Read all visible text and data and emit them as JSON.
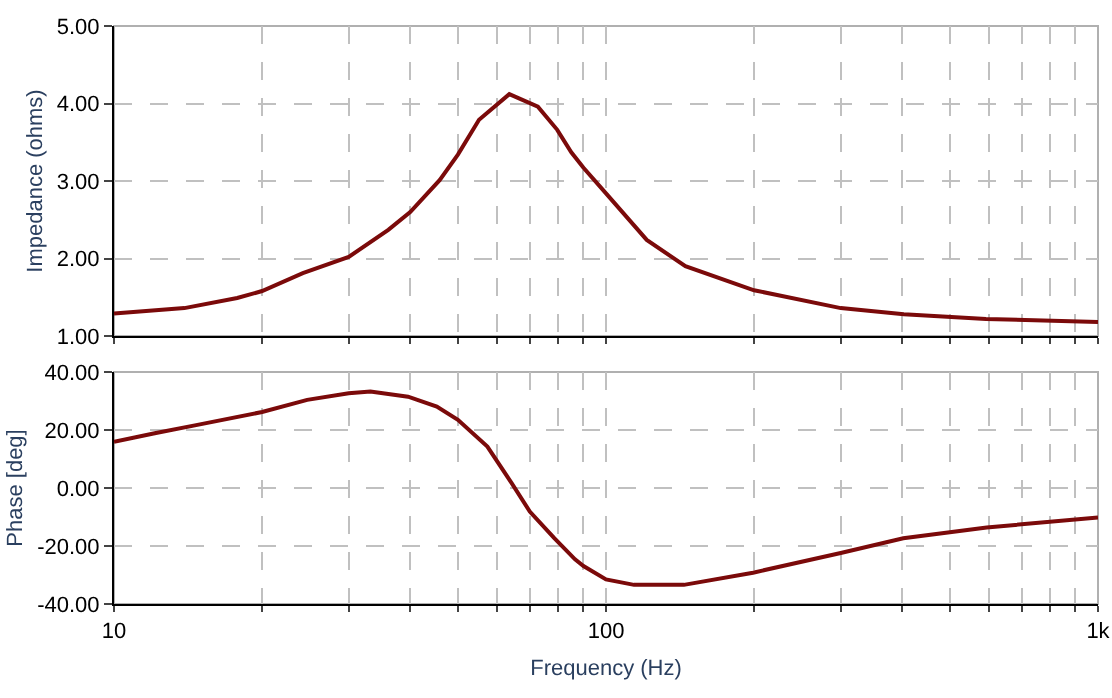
{
  "chart_data": [
    {
      "type": "line",
      "ylabel": "Impedance (ohms)",
      "log": "x",
      "grid": true,
      "tick_labels": "y",
      "x": [
        10,
        13.9,
        17.8,
        20,
        24.2,
        30,
        36.1,
        40,
        45.9,
        50,
        55.2,
        63.6,
        72.7,
        79.6,
        85,
        90,
        100,
        121,
        145,
        200,
        300,
        403,
        592,
        1000
      ],
      "series": [
        {
          "color": "#7b0a0a",
          "values": [
            1.29,
            1.36,
            1.49,
            1.58,
            1.81,
            2.02,
            2.37,
            2.6,
            3.01,
            3.34,
            3.79,
            4.12,
            3.96,
            3.66,
            3.37,
            3.17,
            2.84,
            2.24,
            1.9,
            1.59,
            1.36,
            1.28,
            1.22,
            1.18
          ]
        }
      ],
      "xlim": [
        10,
        1000
      ],
      "xticks": [
        {
          "value": 10,
          "label": null
        },
        {
          "value": 20,
          "label": null
        },
        {
          "value": 30,
          "label": null
        },
        {
          "value": 40,
          "label": null
        },
        {
          "value": 50,
          "label": null
        },
        {
          "value": 60,
          "label": null
        },
        {
          "value": 70,
          "label": null
        },
        {
          "value": 80,
          "label": null
        },
        {
          "value": 90,
          "label": null
        },
        {
          "value": 100,
          "label": null
        },
        {
          "value": 200,
          "label": null
        },
        {
          "value": 300,
          "label": null
        },
        {
          "value": 400,
          "label": null
        },
        {
          "value": 500,
          "label": null
        },
        {
          "value": 600,
          "label": null
        },
        {
          "value": 700,
          "label": null
        },
        {
          "value": 800,
          "label": null
        },
        {
          "value": 900,
          "label": null
        },
        {
          "value": 1000,
          "label": null
        }
      ],
      "ylim": [
        1,
        5
      ],
      "yticks": [
        {
          "value": 1,
          "label": "1.00"
        },
        {
          "value": 2,
          "label": "2.00"
        },
        {
          "value": 3,
          "label": "3.00"
        },
        {
          "value": 4,
          "label": "4.00"
        },
        {
          "value": 5,
          "label": "5.00"
        }
      ]
    },
    {
      "type": "line",
      "ylabel": "Phase [deg]",
      "xlabel": "Frequency (Hz)",
      "log": "x",
      "grid": true,
      "x": [
        10,
        12.1,
        14.6,
        20,
        24.7,
        30,
        33.2,
        39.6,
        45.3,
        50,
        57.4,
        64.3,
        70,
        78.5,
        86.5,
        90,
        100,
        114,
        144,
        199,
        300,
        402,
        594,
        1000
      ],
      "series": [
        {
          "color": "#7b0a0a",
          "values": [
            15.9,
            18.9,
            21.6,
            26.2,
            30.4,
            32.7,
            33.3,
            31.5,
            28.1,
            23.5,
            14.3,
            1.7,
            -8.1,
            -17.3,
            -24.6,
            -26.9,
            -31.5,
            -33.4,
            -33.4,
            -29.2,
            -22.4,
            -17.3,
            -13.6,
            -10.2
          ]
        }
      ],
      "xlim": [
        10,
        1000
      ],
      "xticks": [
        10,
        {
          "value": 20,
          "label": null
        },
        {
          "value": 30,
          "label": null
        },
        {
          "value": 40,
          "label": null
        },
        {
          "value": 50,
          "label": null
        },
        {
          "value": 60,
          "label": null
        },
        {
          "value": 70,
          "label": null
        },
        {
          "value": 80,
          "label": null
        },
        {
          "value": 90,
          "label": null
        },
        100,
        {
          "value": 200,
          "label": null
        },
        {
          "value": 300,
          "label": null
        },
        {
          "value": 400,
          "label": null
        },
        {
          "value": 500,
          "label": null
        },
        {
          "value": 600,
          "label": null
        },
        {
          "value": 700,
          "label": null
        },
        {
          "value": 800,
          "label": null
        },
        {
          "value": 900,
          "label": null
        },
        {
          "value": 1000,
          "label": "1k"
        }
      ],
      "ylim": [
        -40,
        40
      ],
      "yticks": [
        {
          "value": -40,
          "label": "-40.00"
        },
        {
          "value": -20,
          "label": "-20.00"
        },
        {
          "value": 0,
          "label": "0.00"
        },
        {
          "value": 20,
          "label": "20.00"
        },
        {
          "value": 40,
          "label": "40.00"
        }
      ]
    }
  ]
}
